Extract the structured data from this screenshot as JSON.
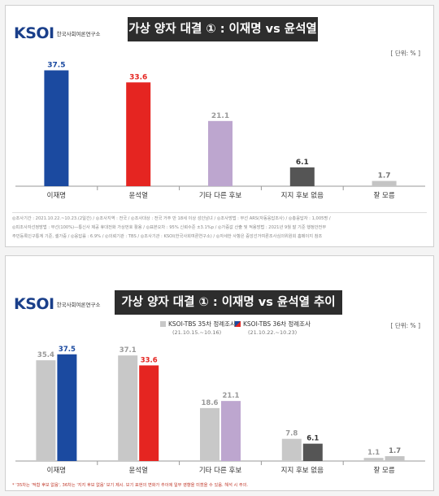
{
  "logo": {
    "mark": "KSOI",
    "sub": "한국사회여론연구소"
  },
  "panel1": {
    "title": "가상 양자 대결 ① : 이재명 vs 윤석열",
    "unit": "[ 단위: % ]",
    "footnote_lines": [
      "◎조사기간 : 2021.10.22.~10.23.(2일간)  /  ◎조사지역 : 전국  /  ◎조사대상 : 전국 거주 만 18세 이상 성인남녀  /  ◎조사방법 : 무선 ARS(자동응답조사)  /  ◎총응답자 : 1,005명 /",
      "◎피조사자선정방법 : 무선(100%)—통신사 제공 휴대전화 가상번호 활용  /  ◎표본오차 : 95% 신뢰수준 ±3.1%p  /  ◎가중값 산출 및 적용방법 : 2021년 9월 말 기준 행정안전부",
      "주민등록인구통계 기준, 셀가중  /  ◎응답률 : 6.9%  /  ◎의뢰기관 : TBS  /  ◎조사기관 : KSOI(한국사회여론연구소)  /  ◎자세한 사항은 중앙선거여론조사심의위원회 홈페이지 참조"
    ]
  },
  "panel2": {
    "title": "가상 양자 대결 ① : 이재명 vs 윤석열 추이",
    "unit": "[ 단위: % ]",
    "footnote": "* '35차는 '적합 후보 없음', 36차는 '지지 후보 없음' 보기 제시. 보기 표현의 변화가 추이에 일부 영향을 미쳤을 수 있음. 해석 시 주의."
  },
  "chart_data": [
    {
      "type": "bar",
      "title": "가상 양자 대결 ① : 이재명 vs 윤석열",
      "categories": [
        "이재명",
        "윤석열",
        "기타 다른 후보",
        "지지 후보 없음",
        "잘 모름"
      ],
      "values": [
        37.5,
        33.6,
        21.1,
        6.1,
        1.7
      ],
      "ylim": [
        0,
        40
      ],
      "colors": [
        "#1b4aa0",
        "#e52521",
        "#bda6cf",
        "#555555",
        "#c4c4c4"
      ],
      "label_colors": [
        "#1b4aa0",
        "#e52521",
        "#999999",
        "#333333",
        "#777777"
      ]
    },
    {
      "type": "bar",
      "title": "가상 양자 대결 ① : 이재명 vs 윤석열 추이",
      "categories": [
        "이재명",
        "윤석열",
        "기타 다른 후보",
        "지지 후보 없음",
        "잘 모름"
      ],
      "series": [
        {
          "name": "KSOI-TBS 35차 정례조사",
          "date": "(21.10.15.~10.16)",
          "values": [
            35.4,
            37.1,
            18.6,
            7.8,
            1.1
          ],
          "color": "#c8c8c8",
          "label_color": "#999999"
        },
        {
          "name": "KSOI-TBS 36차 정례조사",
          "date": "(21.10.22.~10.23)",
          "values": [
            37.5,
            33.6,
            21.1,
            6.1,
            1.7
          ],
          "colors": [
            "#1b4aa0",
            "#e52521",
            "#bda6cf",
            "#555555",
            "#c4c4c4"
          ],
          "label_colors": [
            "#1b4aa0",
            "#e52521",
            "#999999",
            "#333333",
            "#777777"
          ]
        }
      ],
      "ylim": [
        0,
        40
      ],
      "legend": "top-center"
    }
  ]
}
